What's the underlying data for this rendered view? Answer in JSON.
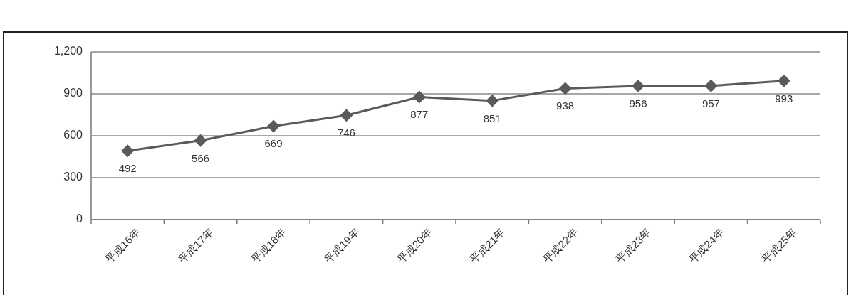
{
  "chart_data": {
    "type": "line",
    "categories": [
      "平成16年",
      "平成17年",
      "平成18年",
      "平成19年",
      "平成20年",
      "平成21年",
      "平成22年",
      "平成23年",
      "平成24年",
      "平成25年"
    ],
    "series": [
      {
        "color": "#5a5a5a",
        "values": [
          492,
          566,
          669,
          746,
          877,
          851,
          938,
          956,
          957,
          993
        ]
      }
    ],
    "ylim": [
      0,
      1200
    ],
    "yticks": [
      0,
      300,
      600,
      900,
      {
        "value": 1200,
        "label": "1,200"
      }
    ],
    "grid": "y",
    "marker": "diamond",
    "line_style": "solid",
    "data_labels": true
  }
}
